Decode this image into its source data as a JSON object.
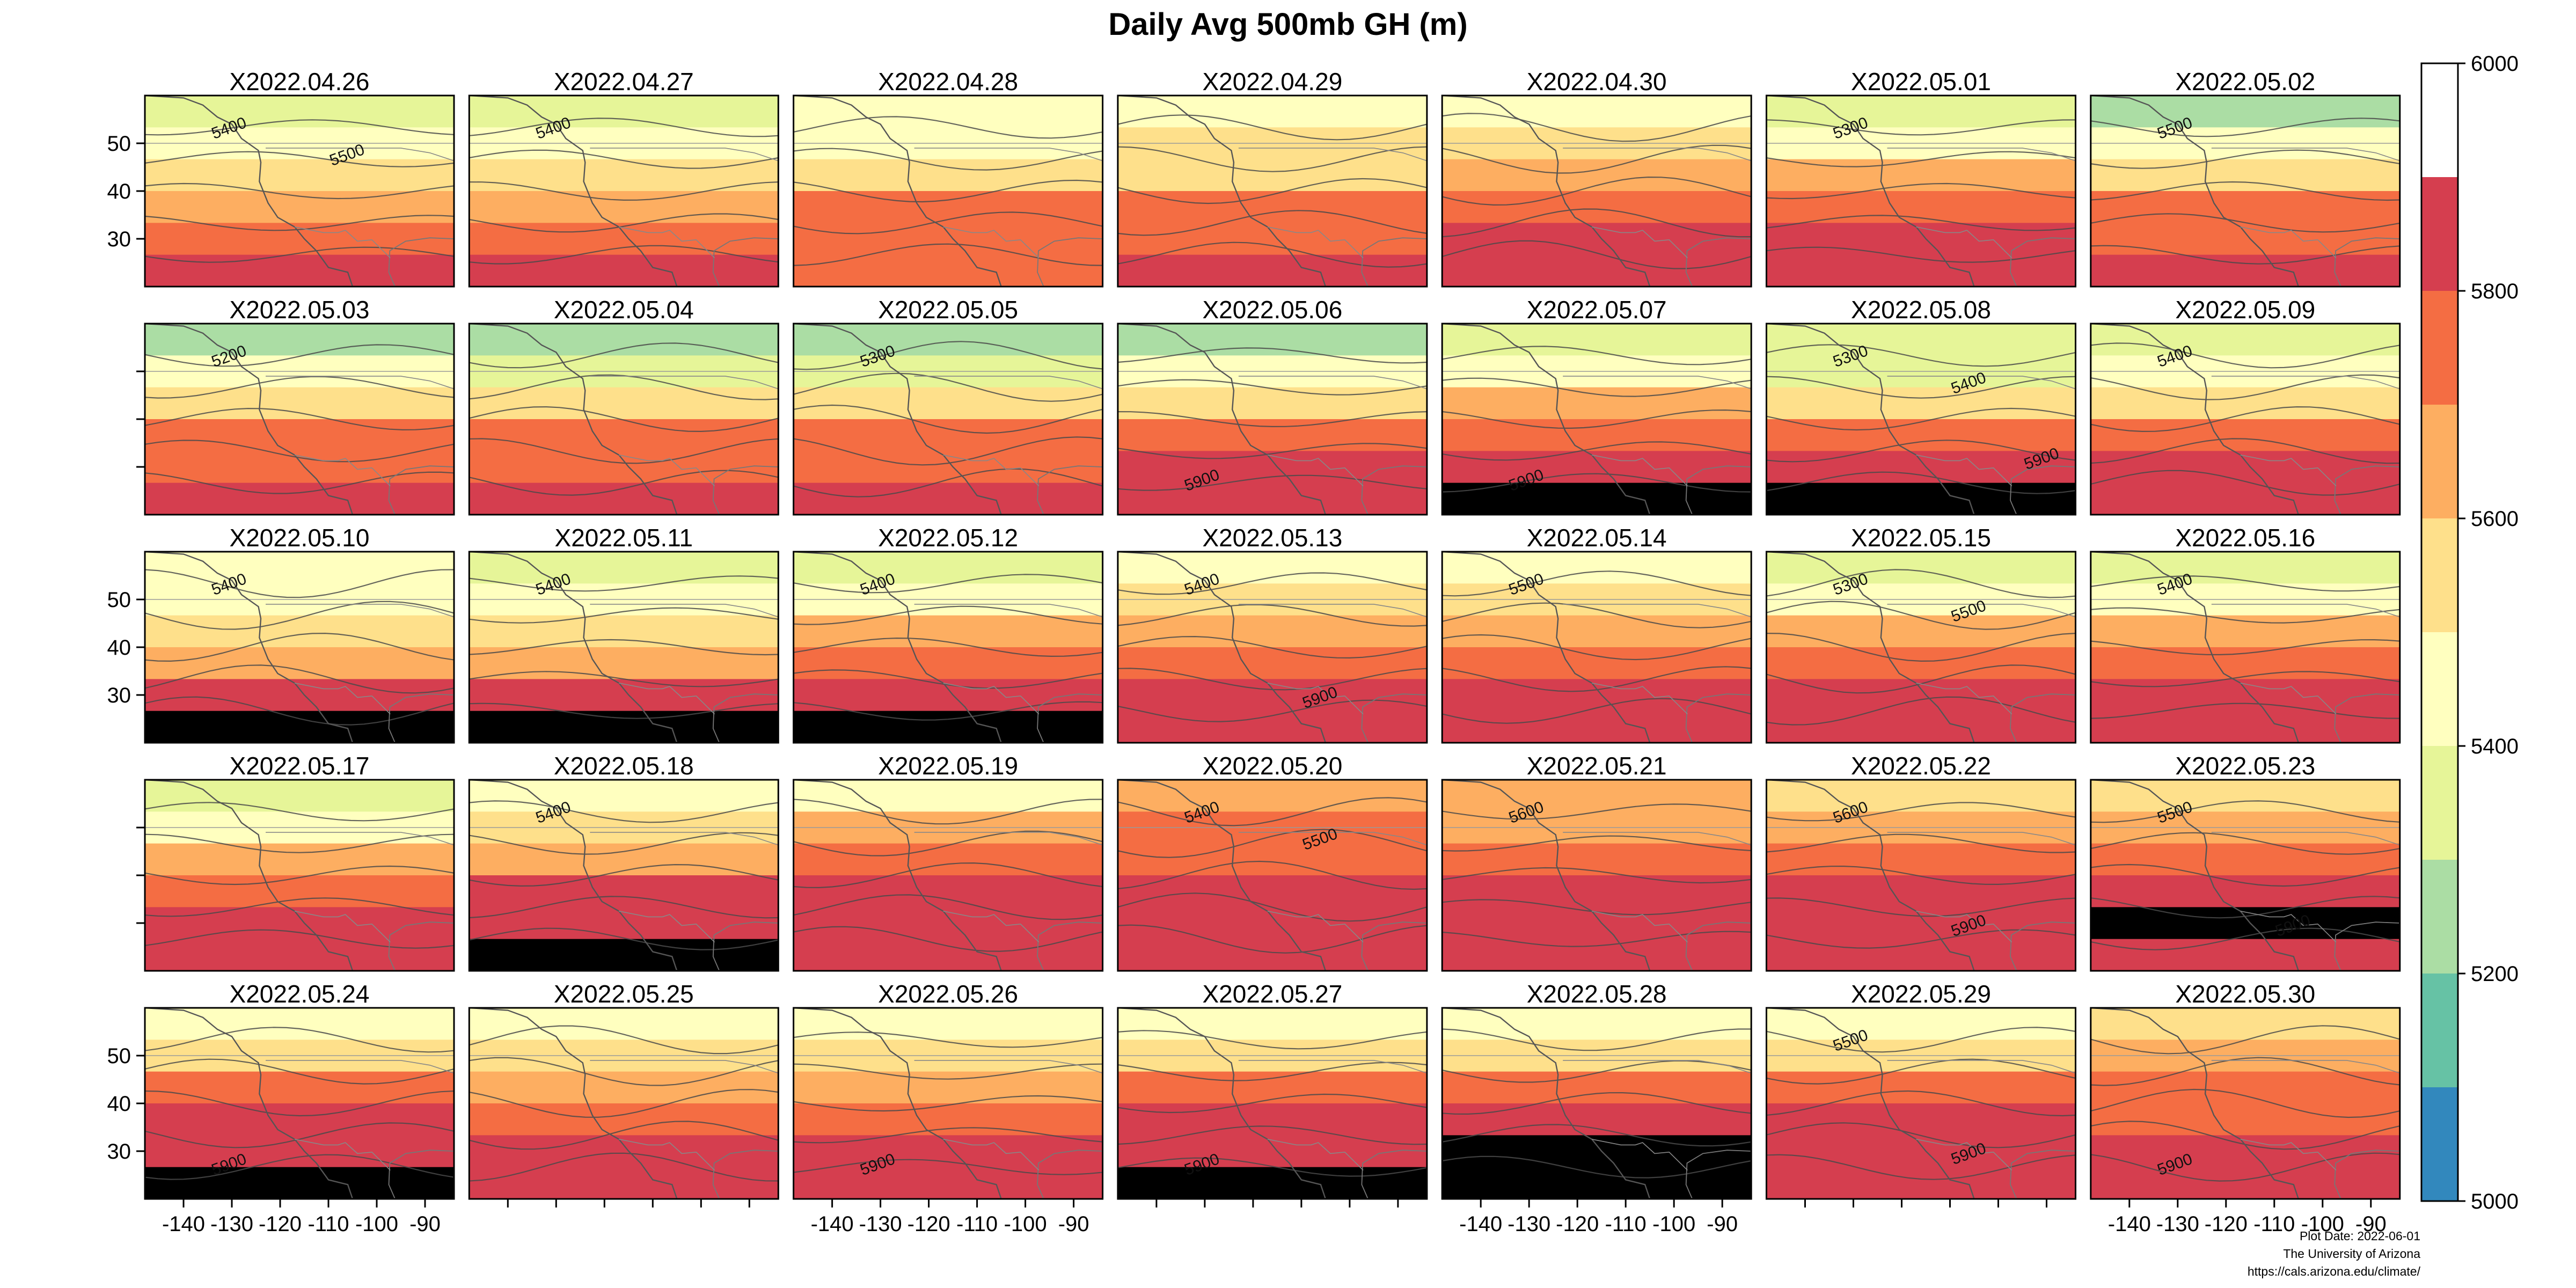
{
  "title": "Daily Avg 500mb GH (m)",
  "footer": {
    "plot_date": "Plot Date: 2022-06-01",
    "org": "The University of Arizona",
    "url": "https://cals.arizona.edu/climate/"
  },
  "chart_data": {
    "type": "heatmap",
    "panels": [
      "X2022.04.26",
      "X2022.04.27",
      "X2022.04.28",
      "X2022.04.29",
      "X2022.04.30",
      "X2022.05.01",
      "X2022.05.02",
      "X2022.05.03",
      "X2022.05.04",
      "X2022.05.05",
      "X2022.05.06",
      "X2022.05.07",
      "X2022.05.08",
      "X2022.05.09",
      "X2022.05.10",
      "X2022.05.11",
      "X2022.05.12",
      "X2022.05.13",
      "X2022.05.14",
      "X2022.05.15",
      "X2022.05.16",
      "X2022.05.17",
      "X2022.05.18",
      "X2022.05.19",
      "X2022.05.20",
      "X2022.05.21",
      "X2022.05.22",
      "X2022.05.23",
      "X2022.05.24",
      "X2022.05.25",
      "X2022.05.26",
      "X2022.05.27",
      "X2022.05.28",
      "X2022.05.29",
      "X2022.05.30"
    ],
    "layout": {
      "rows": 5,
      "cols": 7
    },
    "x_ticks": [
      -140,
      -130,
      -120,
      -110,
      -100,
      -90
    ],
    "y_ticks": [
      30,
      40,
      50
    ],
    "xlim": [
      -148,
      -84
    ],
    "ylim": [
      20,
      60
    ],
    "colorbar": {
      "ticks": [
        5000,
        5200,
        5400,
        5600,
        5800,
        6000
      ],
      "range": [
        5000,
        6000
      ],
      "levels": [
        5000,
        5100,
        5200,
        5300,
        5400,
        5500,
        5600,
        5700,
        5800,
        5900,
        6000
      ],
      "colors": [
        "#3288bd",
        "#66c2a5",
        "#abdda4",
        "#e6f598",
        "#ffffbf",
        "#fee08b",
        "#fdae61",
        "#f46d43",
        "#d53e4f"
      ]
    },
    "panel_fields": [
      [
        5300,
        5400,
        5500,
        5650,
        5780,
        5800
      ],
      [
        5350,
        5420,
        5550,
        5680,
        5780,
        5800
      ],
      [
        5420,
        5480,
        5560,
        5700,
        5780,
        5790
      ],
      [
        5450,
        5500,
        5580,
        5720,
        5790,
        5800
      ],
      [
        5450,
        5500,
        5620,
        5750,
        5800,
        5810
      ],
      [
        5300,
        5450,
        5600,
        5740,
        5800,
        5820
      ],
      [
        5250,
        5450,
        5580,
        5720,
        5790,
        5830
      ],
      [
        5200,
        5400,
        5550,
        5700,
        5790,
        5840
      ],
      [
        5200,
        5380,
        5560,
        5720,
        5790,
        5860
      ],
      [
        5200,
        5350,
        5560,
        5720,
        5790,
        5850
      ],
      [
        5280,
        5420,
        5580,
        5750,
        5830,
        5880
      ],
      [
        5350,
        5450,
        5620,
        5760,
        5860,
        5900
      ],
      [
        5320,
        5380,
        5500,
        5700,
        5820,
        5900
      ],
      [
        5320,
        5400,
        5520,
        5720,
        5800,
        5850
      ],
      [
        5450,
        5480,
        5550,
        5650,
        5800,
        5900
      ],
      [
        5350,
        5450,
        5550,
        5680,
        5830,
        5900
      ],
      [
        5380,
        5480,
        5600,
        5760,
        5820,
        5900
      ],
      [
        5450,
        5520,
        5650,
        5770,
        5800,
        5880
      ],
      [
        5450,
        5520,
        5660,
        5770,
        5810,
        5880
      ],
      [
        5300,
        5480,
        5620,
        5760,
        5810,
        5880
      ],
      [
        5300,
        5450,
        5600,
        5740,
        5800,
        5880
      ],
      [
        5350,
        5480,
        5620,
        5760,
        5800,
        5890
      ],
      [
        5400,
        5500,
        5680,
        5800,
        5880,
        5900
      ],
      [
        5400,
        5600,
        5750,
        5800,
        5890,
        5820
      ],
      [
        5650,
        5700,
        5780,
        5800,
        5800,
        5810
      ],
      [
        5600,
        5650,
        5750,
        5800,
        5810,
        5810
      ],
      [
        5560,
        5640,
        5720,
        5800,
        5850,
        5890
      ],
      [
        5560,
        5640,
        5720,
        5810,
        5900,
        5890
      ],
      [
        5420,
        5520,
        5700,
        5800,
        5850,
        5900
      ],
      [
        5480,
        5550,
        5680,
        5780,
        5800,
        5800
      ],
      [
        5420,
        5550,
        5680,
        5780,
        5800,
        5880
      ],
      [
        5420,
        5550,
        5700,
        5800,
        5850,
        5900
      ],
      [
        5450,
        5580,
        5720,
        5800,
        5900,
        5900
      ],
      [
        5430,
        5560,
        5720,
        5800,
        5860,
        5880
      ],
      [
        5550,
        5600,
        5700,
        5790,
        5830,
        5880
      ]
    ],
    "annotations": [
      {
        "panel": 0,
        "text": "5400"
      },
      {
        "panel": 0,
        "text": "5500"
      },
      {
        "panel": 1,
        "text": "5400"
      },
      {
        "panel": 5,
        "text": "5300"
      },
      {
        "panel": 6,
        "text": "5500"
      },
      {
        "panel": 7,
        "text": "5200"
      },
      {
        "panel": 9,
        "text": "5300"
      },
      {
        "panel": 10,
        "text": "5900"
      },
      {
        "panel": 11,
        "text": "5900"
      },
      {
        "panel": 12,
        "text": "5300"
      },
      {
        "panel": 12,
        "text": "5400"
      },
      {
        "panel": 12,
        "text": "5900"
      },
      {
        "panel": 13,
        "text": "5400"
      },
      {
        "panel": 14,
        "text": "5400"
      },
      {
        "panel": 15,
        "text": "5400"
      },
      {
        "panel": 16,
        "text": "5400"
      },
      {
        "panel": 17,
        "text": "5400"
      },
      {
        "panel": 17,
        "text": "5900"
      },
      {
        "panel": 18,
        "text": "5500"
      },
      {
        "panel": 19,
        "text": "5300"
      },
      {
        "panel": 19,
        "text": "5500"
      },
      {
        "panel": 20,
        "text": "5400"
      },
      {
        "panel": 22,
        "text": "5400"
      },
      {
        "panel": 24,
        "text": "5400"
      },
      {
        "panel": 24,
        "text": "5500"
      },
      {
        "panel": 25,
        "text": "5600"
      },
      {
        "panel": 26,
        "text": "5600"
      },
      {
        "panel": 26,
        "text": "5900"
      },
      {
        "panel": 27,
        "text": "5500"
      },
      {
        "panel": 27,
        "text": "5900"
      },
      {
        "panel": 28,
        "text": "5900"
      },
      {
        "panel": 30,
        "text": "5900"
      },
      {
        "panel": 31,
        "text": "5900"
      },
      {
        "panel": 33,
        "text": "5500"
      },
      {
        "panel": 33,
        "text": "5900"
      },
      {
        "panel": 34,
        "text": "5900"
      }
    ]
  }
}
